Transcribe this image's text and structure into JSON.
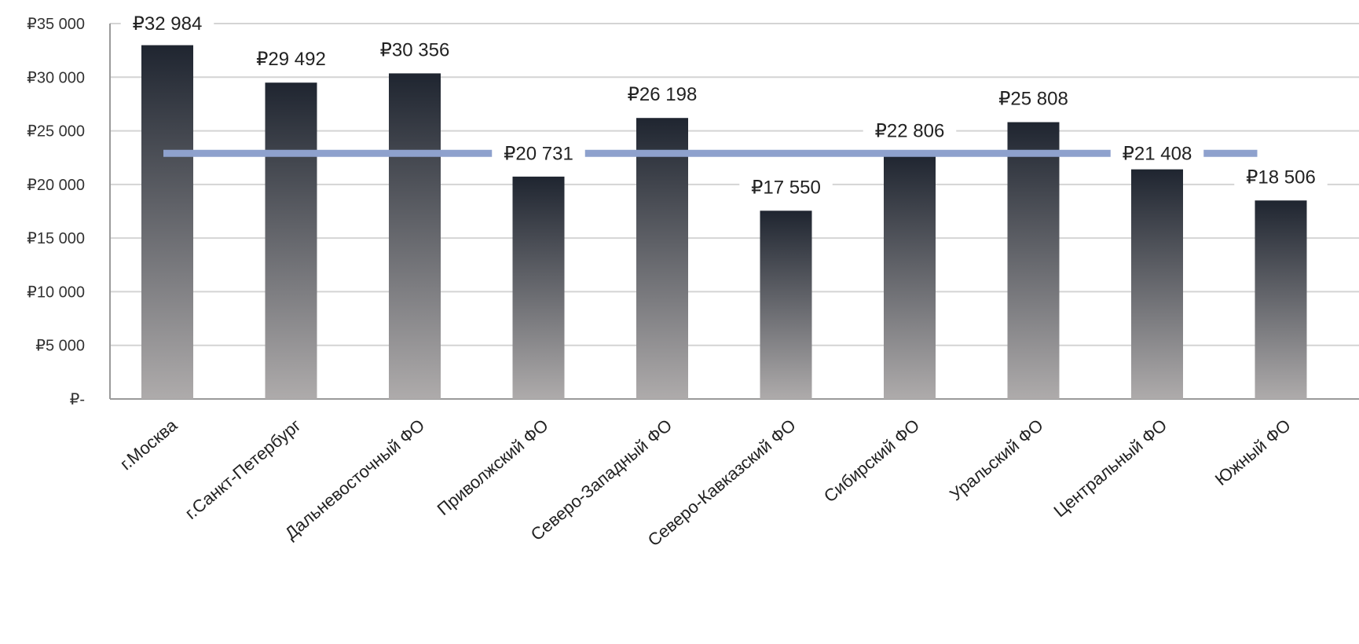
{
  "chart_data": {
    "type": "bar",
    "categories": [
      "г.Москва",
      "г.Санкт-Петербург",
      "Дальневосточный ФО",
      "Приволжский ФО",
      "Северо-Западный ФО",
      "Северо-Кавказский ФО",
      "Сибирский ФО",
      "Уральский ФО",
      "Центральный ФО",
      "Южный ФО"
    ],
    "values": [
      32984,
      29492,
      30356,
      20731,
      26198,
      17550,
      22806,
      25808,
      21408,
      18506
    ],
    "data_labels": [
      "₽32 984",
      "₽29 492",
      "₽30 356",
      "₽20 731",
      "₽26 198",
      "₽17 550",
      "₽22 806",
      "₽25 808",
      "₽21 408",
      "₽18 506"
    ],
    "reference_line": 22900,
    "ylim": [
      0,
      35000
    ],
    "yticks": [
      0,
      5000,
      10000,
      15000,
      20000,
      25000,
      30000,
      35000
    ],
    "ytick_labels": [
      "₽-",
      "₽5 000",
      "₽10 000",
      "₽15 000",
      "₽20 000",
      "₽25 000",
      "₽30 000",
      "₽35 000"
    ],
    "grid": true,
    "title": "",
    "xlabel": "",
    "ylabel": "",
    "colors": {
      "bar_top": "#1f2530",
      "bar_bottom": "#aeabab",
      "reference_line": "#8ea1cd",
      "grid": "#d4d4d4",
      "axis": "#9a9a9a"
    }
  }
}
